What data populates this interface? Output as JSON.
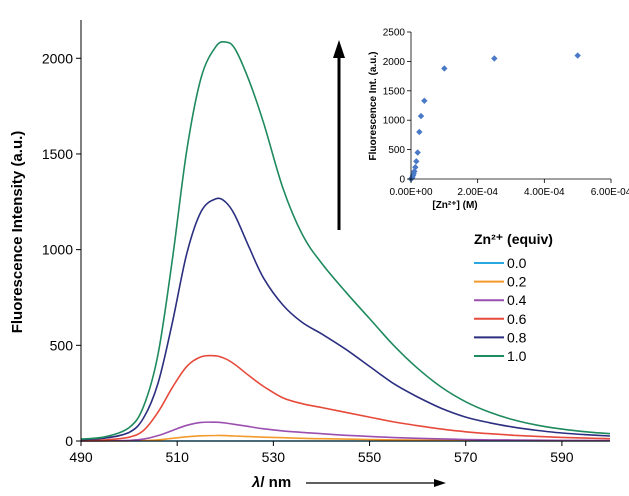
{
  "chart_data": [
    {
      "type": "line",
      "xlabel_symbol": "λ",
      "xlabel_unit": "/ nm",
      "ylabel": "Fluorescence Intensity (a.u.)",
      "xlim": [
        490,
        600
      ],
      "ylim": [
        0,
        2200
      ],
      "xticks": [
        490,
        510,
        530,
        550,
        570,
        590
      ],
      "yticks": [
        0,
        500,
        1000,
        1500,
        2000
      ],
      "grid": false,
      "legend_title": "Zn²⁺ (equiv)",
      "legend_position": "right",
      "arrow": "increasing",
      "x": [
        490,
        495,
        500,
        503,
        506,
        509,
        512,
        515,
        518,
        520,
        522,
        525,
        528,
        532,
        536,
        540,
        545,
        550,
        555,
        560,
        565,
        570,
        575,
        580,
        585,
        590,
        595,
        600
      ],
      "series": [
        {
          "name": "0.0",
          "color": "#29a9e0",
          "values": [
            0,
            0,
            0,
            0,
            0,
            0,
            0,
            0,
            0,
            0,
            0,
            0,
            0,
            0,
            0,
            0,
            0,
            0,
            0,
            0,
            0,
            0,
            0,
            0,
            0,
            0,
            0,
            0
          ]
        },
        {
          "name": "0.2",
          "color": "#f39a2b",
          "values": [
            0,
            0,
            1,
            2,
            6,
            14,
            22,
            27,
            29,
            28,
            26,
            23,
            20,
            17,
            14,
            12,
            10,
            8,
            6,
            5,
            4,
            3,
            2,
            2,
            1,
            1,
            1,
            1
          ]
        },
        {
          "name": "0.4",
          "color": "#9b4fb0",
          "values": [
            0,
            1,
            3,
            10,
            28,
            55,
            82,
            97,
            98,
            94,
            87,
            75,
            64,
            53,
            45,
            38,
            30,
            24,
            18,
            14,
            11,
            8,
            6,
            5,
            4,
            3,
            3,
            2
          ]
        },
        {
          "name": "0.6",
          "color": "#e64a3b",
          "values": [
            3,
            6,
            20,
            55,
            150,
            280,
            390,
            440,
            445,
            430,
            400,
            340,
            285,
            225,
            195,
            175,
            150,
            125,
            100,
            80,
            62,
            48,
            38,
            30,
            24,
            19,
            15,
            12
          ]
        },
        {
          "name": "0.8",
          "color": "#2b2f80",
          "values": [
            8,
            15,
            45,
            120,
            300,
            620,
            980,
            1200,
            1265,
            1250,
            1180,
            1010,
            850,
            710,
            620,
            560,
            480,
            390,
            300,
            230,
            170,
            125,
            95,
            72,
            55,
            42,
            33,
            26
          ]
        },
        {
          "name": "1.0",
          "color": "#1f8a5e",
          "values": [
            10,
            22,
            70,
            180,
            450,
            950,
            1520,
            1900,
            2060,
            2085,
            2050,
            1880,
            1660,
            1320,
            1080,
            930,
            780,
            640,
            500,
            380,
            280,
            205,
            150,
            110,
            82,
            62,
            48,
            38
          ]
        }
      ]
    },
    {
      "type": "scatter",
      "xlabel": "[Zn²⁺] (M)",
      "ylabel": "Fluorescence Int. (a.u.)",
      "xlim": [
        0,
        0.0006
      ],
      "ylim": [
        0,
        2500
      ],
      "xtick_labels": [
        "0.00E+00",
        "2.00E-04",
        "4.00E-04",
        "6.00E-04"
      ],
      "yticks": [
        0,
        500,
        1000,
        1500,
        2000,
        2500
      ],
      "marker": "diamond",
      "color": "#4a7ac7",
      "x": [
        0,
        2e-06,
        4e-06,
        6e-06,
        8e-06,
        1e-05,
        1.3e-05,
        1.6e-05,
        2e-05,
        2.5e-05,
        3e-05,
        4e-05,
        0.0001,
        0.00025,
        0.0005
      ],
      "y": [
        0,
        10,
        30,
        60,
        90,
        130,
        200,
        300,
        450,
        800,
        1070,
        1330,
        1880,
        2050,
        2100
      ]
    }
  ]
}
